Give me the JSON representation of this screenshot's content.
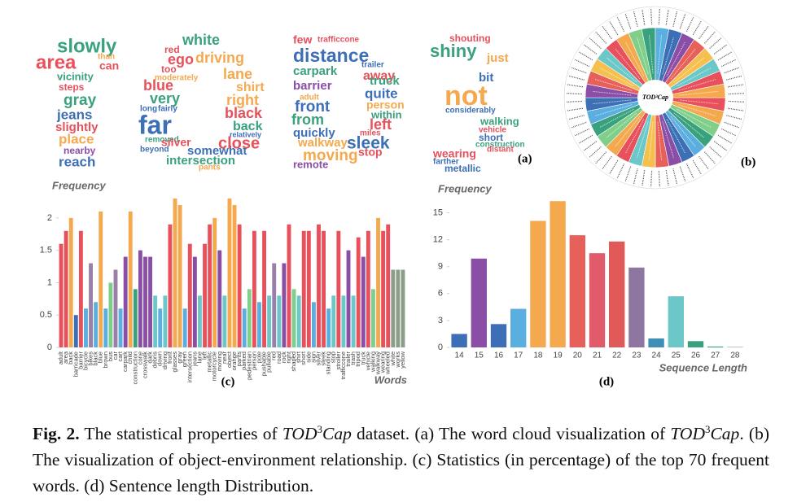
{
  "word_cloud": {
    "label": "(a)",
    "words": [
      {
        "text": "slowly",
        "color": "#3aa17e"
      },
      {
        "text": "area",
        "color": "#e8505b"
      },
      {
        "text": "than",
        "color": "#f5a94e"
      },
      {
        "text": "can",
        "color": "#e8505b"
      },
      {
        "text": "vicinity",
        "color": "#3aa17e"
      },
      {
        "text": "steps",
        "color": "#e8505b"
      },
      {
        "text": "gray",
        "color": "#3aa17e"
      },
      {
        "text": "jeans",
        "color": "#3d6fb6"
      },
      {
        "text": "slightly",
        "color": "#e8505b"
      },
      {
        "text": "place",
        "color": "#f5a94e"
      },
      {
        "text": "nearby",
        "color": "#8b4ea6"
      },
      {
        "text": "reach",
        "color": "#3d6fb6"
      },
      {
        "text": "white",
        "color": "#3aa17e"
      },
      {
        "text": "red",
        "color": "#e8505b"
      },
      {
        "text": "ego",
        "color": "#e8505b"
      },
      {
        "text": "driving",
        "color": "#f5a94e"
      },
      {
        "text": "too",
        "color": "#e8505b"
      },
      {
        "text": "moderately",
        "color": "#f5a94e"
      },
      {
        "text": "blue",
        "color": "#e8505b"
      },
      {
        "text": "very",
        "color": "#3aa17e"
      },
      {
        "text": "long",
        "color": "#3d6fb6"
      },
      {
        "text": "fairly",
        "color": "#3d6fb6"
      },
      {
        "text": "far",
        "color": "#3d6fb6"
      },
      {
        "text": "removed",
        "color": "#3aa17e"
      },
      {
        "text": "beyond",
        "color": "#3d6fb6"
      },
      {
        "text": "silver",
        "color": "#e8505b"
      },
      {
        "text": "somewhat",
        "color": "#3d6fb6"
      },
      {
        "text": "intersection",
        "color": "#3aa17e"
      },
      {
        "text": "pants",
        "color": "#f5a94e"
      },
      {
        "text": "lane",
        "color": "#f5a94e"
      },
      {
        "text": "shirt",
        "color": "#f5a94e"
      },
      {
        "text": "right",
        "color": "#f5a94e"
      },
      {
        "text": "black",
        "color": "#e8505b"
      },
      {
        "text": "back",
        "color": "#3aa17e"
      },
      {
        "text": "relatively",
        "color": "#3d6fb6"
      },
      {
        "text": "close",
        "color": "#e8505b"
      },
      {
        "text": "few",
        "color": "#e8505b"
      },
      {
        "text": "trafficcone",
        "color": "#e8505b"
      },
      {
        "text": "distance",
        "color": "#3d6fb6"
      },
      {
        "text": "carpark",
        "color": "#3aa17e"
      },
      {
        "text": "trailer",
        "color": "#3d6fb6"
      },
      {
        "text": "away",
        "color": "#e8505b"
      },
      {
        "text": "barrier",
        "color": "#8b4ea6"
      },
      {
        "text": "truck",
        "color": "#3aa17e"
      },
      {
        "text": "quite",
        "color": "#3d6fb6"
      },
      {
        "text": "adult",
        "color": "#f5a94e"
      },
      {
        "text": "front",
        "color": "#3d6fb6"
      },
      {
        "text": "person",
        "color": "#f5a94e"
      },
      {
        "text": "within",
        "color": "#3aa17e"
      },
      {
        "text": "from",
        "color": "#3aa17e"
      },
      {
        "text": "left",
        "color": "#e8505b"
      },
      {
        "text": "quickly",
        "color": "#3d6fb6"
      },
      {
        "text": "miles",
        "color": "#e8505b"
      },
      {
        "text": "walkway",
        "color": "#f5a94e"
      },
      {
        "text": "sleek",
        "color": "#3d6fb6"
      },
      {
        "text": "moving",
        "color": "#f5a94e"
      },
      {
        "text": "stop",
        "color": "#e8505b"
      },
      {
        "text": "remote",
        "color": "#8b4ea6"
      },
      {
        "text": "shouting",
        "color": "#e8505b"
      },
      {
        "text": "shiny",
        "color": "#3aa17e"
      },
      {
        "text": "just",
        "color": "#f5a94e"
      },
      {
        "text": "bit",
        "color": "#3d6fb6"
      },
      {
        "text": "not",
        "color": "#f5a94e"
      },
      {
        "text": "considerably",
        "color": "#3d6fb6"
      },
      {
        "text": "walking",
        "color": "#3aa17e"
      },
      {
        "text": "vehicle",
        "color": "#e8505b"
      },
      {
        "text": "short",
        "color": "#3d6fb6"
      },
      {
        "text": "construction",
        "color": "#3aa17e"
      },
      {
        "text": "distant",
        "color": "#e8505b"
      },
      {
        "text": "wearing",
        "color": "#e8505b"
      },
      {
        "text": "farther",
        "color": "#3d6fb6"
      },
      {
        "text": "metallic",
        "color": "#3d6fb6"
      }
    ]
  },
  "relation_wheel": {
    "label": "(b)",
    "center_label": "TOD³Cap"
  },
  "chart_data": [
    {
      "type": "bar",
      "label": "(c)",
      "ylabel": "Frequency",
      "xlabel": "Words",
      "categories": [
        "adult",
        "area",
        "back",
        "barricade",
        "barrier",
        "bicycle",
        "bikes",
        "black",
        "blue",
        "brown",
        "bus",
        "car",
        "cart",
        "carpark",
        "child",
        "construction",
        "cone",
        "crosswalk",
        "dark",
        "debris",
        "down",
        "driving",
        "front",
        "glasses",
        "gray",
        "green",
        "intersection",
        "jeans",
        "lane",
        "left",
        "metallic",
        "motorcycle",
        "moving",
        "near",
        "object",
        "orange",
        "pants",
        "parked",
        "pedestrian",
        "person",
        "pole",
        "pushable",
        "pullable",
        "red",
        "road",
        "rock",
        "right",
        "shaped",
        "shirt",
        "short",
        "side",
        "sign",
        "silver",
        "sleek",
        "standing",
        "stop",
        "stroller",
        "trafficcone",
        "trailer",
        "trash",
        "tripod",
        "truck",
        "vehicle",
        "walking",
        "walkway",
        "wearing",
        "wheeled",
        "white",
        "works",
        "yellow"
      ],
      "values": [
        1.6,
        1.8,
        2.0,
        0.5,
        1.8,
        0.6,
        1.3,
        0.7,
        2.1,
        0.6,
        1.0,
        1.2,
        0.6,
        1.4,
        2.1,
        0.9,
        1.5,
        1.4,
        1.4,
        0.8,
        0.6,
        0.8,
        1.9,
        2.3,
        2.2,
        0.6,
        1.6,
        1.4,
        0.8,
        1.6,
        1.9,
        2.0,
        1.5,
        0.8,
        2.3,
        2.2,
        1.9,
        0.6,
        0.9,
        1.8,
        0.7,
        1.8,
        0.8,
        1.3,
        0.8,
        1.3,
        1.9,
        0.9,
        0.8,
        1.8,
        1.8,
        0.7,
        1.9,
        1.8,
        0.6,
        0.8,
        1.8,
        0.8,
        1.5,
        0.8,
        1.7,
        1.4,
        1.8,
        0.9,
        2.0,
        1.8,
        1.9,
        1.2,
        1.2,
        1.2
      ],
      "colors": [
        "#e8505b",
        "#e8505b",
        "#f5a94e",
        "#3d6fb6",
        "#e8505b",
        "#5aaee0",
        "#9a7fa8",
        "#5aaee0",
        "#f5a94e",
        "#5aaee0",
        "#7fcf8a",
        "#9a7fa8",
        "#5aaee0",
        "#8b4ea6",
        "#f5a94e",
        "#3aa17e",
        "#8b4ea6",
        "#8b4ea6",
        "#8b4ea6",
        "#6cc7c9",
        "#5aaee0",
        "#6cc7c9",
        "#e8505b",
        "#f5a94e",
        "#f5a94e",
        "#5aaee0",
        "#e8505b",
        "#8b4ea6",
        "#6cc7c9",
        "#e8505b",
        "#e8505b",
        "#f5a94e",
        "#8b4ea6",
        "#6cc7c9",
        "#f5a94e",
        "#f5a94e",
        "#e8505b",
        "#5aaee0",
        "#7fcf8a",
        "#e8505b",
        "#5aaee0",
        "#e8505b",
        "#6cc7c9",
        "#9a7fa8",
        "#6cc7c9",
        "#8b4ea6",
        "#e8505b",
        "#7fcf8a",
        "#6cc7c9",
        "#e8505b",
        "#e8505b",
        "#5aaee0",
        "#e8505b",
        "#e8505b",
        "#5aaee0",
        "#6cc7c9",
        "#e8505b",
        "#6cc7c9",
        "#8b4ea6",
        "#6cc7c9",
        "#e8505b",
        "#8b4ea6",
        "#e8505b",
        "#7fcf8a",
        "#f5a94e",
        "#e8505b",
        "#e8505b",
        "#8a9e8a",
        "#8a9e8a",
        "#8a9e8a"
      ],
      "ylim": [
        0,
        2.35
      ],
      "yticks": [
        0,
        0.5,
        1,
        1.5,
        2
      ],
      "grid": false
    },
    {
      "type": "bar",
      "label": "(d)",
      "ylabel": "Frequency",
      "xlabel": "Sequence Length",
      "categories": [
        "14",
        "15",
        "16",
        "17",
        "18",
        "19",
        "20",
        "21",
        "22",
        "23",
        "24",
        "25",
        "26",
        "27",
        "28"
      ],
      "values": [
        1.5,
        9.9,
        2.6,
        4.3,
        14.1,
        16.3,
        12.5,
        10.5,
        11.8,
        8.9,
        1.0,
        5.7,
        0.7,
        0.1,
        0.05
      ],
      "colors": [
        "#3d6fb6",
        "#8b4ea6",
        "#3d6fb6",
        "#5aaee0",
        "#f5a94e",
        "#f5a94e",
        "#e8605a",
        "#e05a6a",
        "#e05a5a",
        "#8f76a0",
        "#3d8fb6",
        "#6cc7c9",
        "#3aa17e",
        "#3aa17e",
        "#7a9a8a"
      ],
      "ylim": [
        0,
        16.5
      ],
      "yticks": [
        0,
        3,
        6,
        9,
        12,
        15
      ],
      "grid": false
    }
  ],
  "caption": {
    "segments": [
      "Fig. 2.",
      " The statistical properties of ",
      "TOD",
      "3",
      "Cap",
      " dataset. (a) The word cloud visualization of ",
      "TOD",
      "3",
      "Cap",
      ". (b) The visualization of object-environment relationship. (c) Statistics (in percentage) of the top 70 frequent words. (d) Sentence length Distribution."
    ]
  }
}
